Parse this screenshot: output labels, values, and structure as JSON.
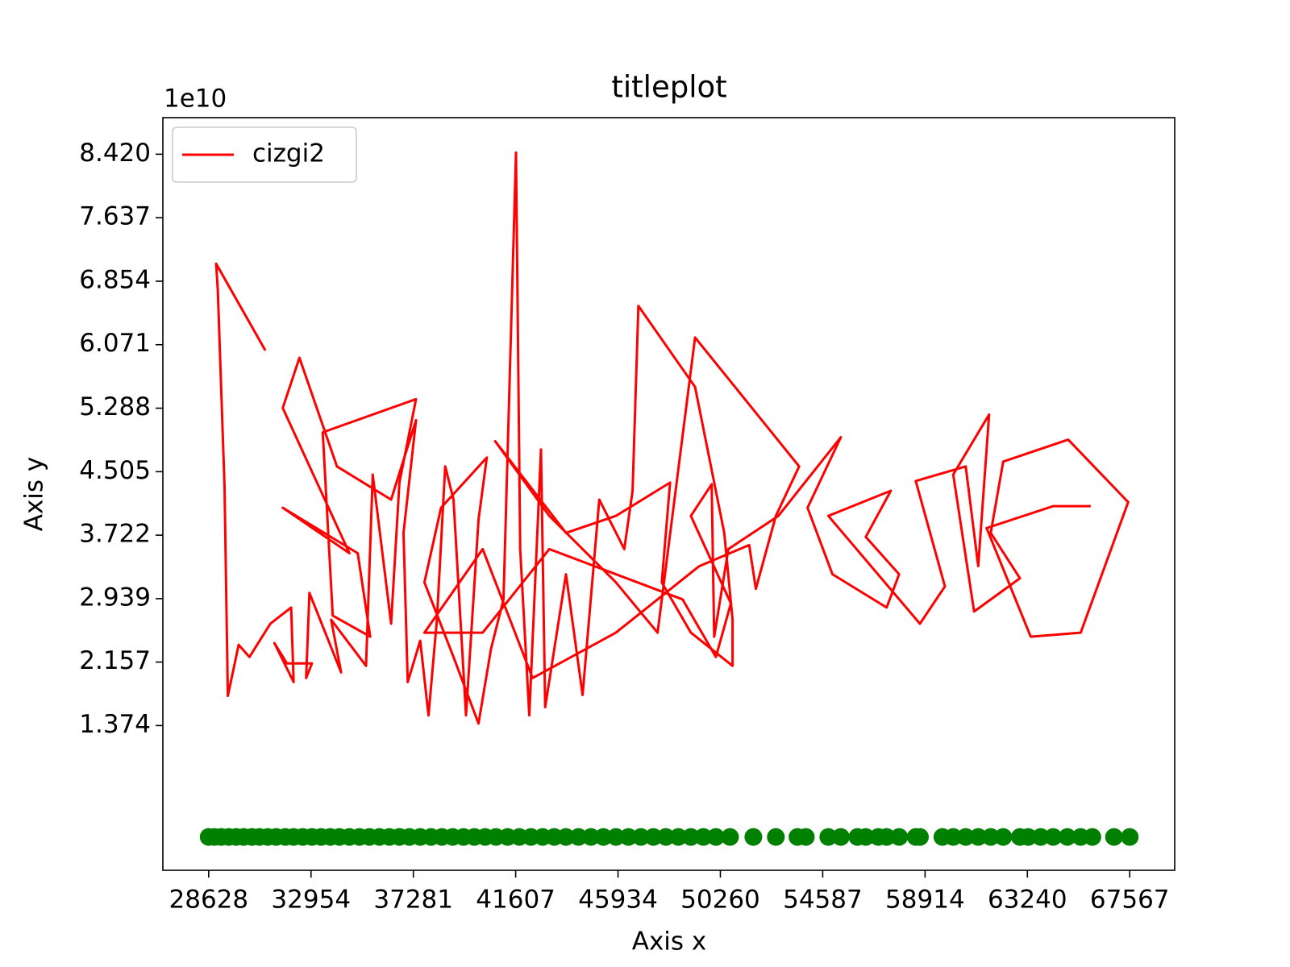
{
  "chart_data": {
    "type": "line",
    "title": "titleplot",
    "x_label": "Axis x",
    "y_label": "Axis y",
    "y_offset_label": "1e10",
    "xlim": [
      26691,
      69468
    ],
    "ylim": [
      -0.411,
      8.871
    ],
    "xticks": [
      28628,
      32954,
      37281,
      41607,
      45934,
      50260,
      54587,
      58914,
      63240,
      67567
    ],
    "yticks": [
      {
        "value": 1.374,
        "label": "1.374"
      },
      {
        "value": 2.157,
        "label": "2.157"
      },
      {
        "value": 2.939,
        "label": "2.939"
      },
      {
        "value": 3.722,
        "label": "3.722"
      },
      {
        "value": 4.505,
        "label": "4.505"
      },
      {
        "value": 5.288,
        "label": "5.288"
      },
      {
        "value": 6.071,
        "label": "6.071"
      },
      {
        "value": 6.854,
        "label": "6.854"
      },
      {
        "value": 7.637,
        "label": "7.637"
      },
      {
        "value": 8.42,
        "label": "8.420"
      }
    ],
    "grid": false,
    "legend_position": "upper left",
    "series": [
      {
        "name": "cizgi2",
        "type": "line",
        "color": "#ff0000",
        "x": [
          31022,
          28945,
          29015,
          29297,
          29438,
          29895,
          30353,
          31233,
          32114,
          32219,
          31409,
          31937,
          32994,
          32747,
          32888,
          34226,
          33804,
          35282,
          35564,
          36339,
          36691,
          37395,
          33451,
          33874,
          35458,
          34930,
          31761,
          34578,
          31761,
          32466,
          34050,
          36339,
          37395,
          36867,
          37043,
          37571,
          37923,
          38275,
          38627,
          38979,
          39508,
          40036,
          40388,
          38451,
          37747,
          38979,
          40036,
          40564,
          41092,
          41620,
          41796,
          42184,
          42677,
          42853,
          43733,
          44437,
          45141,
          46198,
          46550,
          46796,
          49190,
          50423,
          50775,
          50775,
          49014,
          47782,
          48134,
          45845,
          43733,
          40740,
          43029,
          45845,
          47606,
          49190,
          53591,
          52605,
          51760,
          51479,
          49366,
          45845,
          42324,
          40212,
          37747,
          40212,
          43029,
          48662,
          50071,
          50704,
          49014,
          49894,
          49999,
          50598,
          52711,
          55352,
          53944,
          54999,
          57289,
          57817,
          56408,
          57465,
          54824,
          58697,
          59753,
          58521,
          60634,
          61163,
          61620,
          60106,
          60986,
          62922,
          61690,
          62218,
          64964,
          67500,
          65493,
          63380,
          61515,
          64332,
          65916
        ],
        "values": [
          6.0,
          7.07,
          6.73,
          4.32,
          1.74,
          2.37,
          2.22,
          2.63,
          2.83,
          1.91,
          2.39,
          2.14,
          2.14,
          1.96,
          3.01,
          2.03,
          2.68,
          2.11,
          4.47,
          2.63,
          4.37,
          5.4,
          4.99,
          2.73,
          2.47,
          3.5,
          4.06,
          3.5,
          5.29,
          5.91,
          4.57,
          4.16,
          5.14,
          3.75,
          1.91,
          2.42,
          1.5,
          2.68,
          4.57,
          4.16,
          1.5,
          3.91,
          4.68,
          4.06,
          3.14,
          2.22,
          1.4,
          2.32,
          2.93,
          8.44,
          3.55,
          1.5,
          4.78,
          1.6,
          3.24,
          1.75,
          4.16,
          3.55,
          4.27,
          6.55,
          5.55,
          3.75,
          2.68,
          2.11,
          2.52,
          3.14,
          4.37,
          3.96,
          3.75,
          4.88,
          3.96,
          3.14,
          2.52,
          6.16,
          4.57,
          3.96,
          3.06,
          3.6,
          3.34,
          2.52,
          1.96,
          3.55,
          2.52,
          2.52,
          3.55,
          2.93,
          2.22,
          2.88,
          3.96,
          4.35,
          2.47,
          3.55,
          3.96,
          4.93,
          4.06,
          3.24,
          2.83,
          3.24,
          3.7,
          4.27,
          3.96,
          2.63,
          3.09,
          4.39,
          4.57,
          3.34,
          5.21,
          4.47,
          2.78,
          3.19,
          3.75,
          4.63,
          4.9,
          4.13,
          2.52,
          2.47,
          3.81,
          4.08,
          4.08
        ]
      },
      {
        "type": "scatter",
        "color": "#008000",
        "x": [
          28628,
          28874,
          29156,
          29473,
          29790,
          30107,
          30459,
          30776,
          31128,
          31480,
          31867,
          32219,
          32606,
          32994,
          33381,
          33768,
          34156,
          34578,
          35001,
          35423,
          35846,
          36268,
          36691,
          37113,
          37571,
          38029,
          38487,
          38944,
          39402,
          39860,
          40317,
          40775,
          41268,
          41761,
          42254,
          42747,
          43240,
          43733,
          44261,
          44789,
          45317,
          45845,
          46374,
          46902,
          47430,
          47958,
          48486,
          49014,
          49542,
          50071,
          50669,
          51655,
          52606,
          53521,
          53873,
          54824,
          55352,
          56056,
          56408,
          56937,
          57289,
          57817,
          58521,
          58697,
          59648,
          60106,
          60634,
          61163,
          61690,
          62218,
          62922,
          63274,
          63803,
          64332,
          64930,
          65493,
          65986,
          66902,
          67567
        ],
        "values": [
          0,
          0,
          0,
          0,
          0,
          0,
          0,
          0,
          0,
          0,
          0,
          0,
          0,
          0,
          0,
          0,
          0,
          0,
          0,
          0,
          0,
          0,
          0,
          0,
          0,
          0,
          0,
          0,
          0,
          0,
          0,
          0,
          0,
          0,
          0,
          0,
          0,
          0,
          0,
          0,
          0,
          0,
          0,
          0,
          0,
          0,
          0,
          0,
          0,
          0,
          0,
          0,
          0,
          0,
          0,
          0,
          0,
          0,
          0,
          0,
          0,
          0,
          0,
          0,
          0,
          0,
          0,
          0,
          0,
          0,
          0,
          0,
          0,
          0,
          0,
          0,
          0,
          0,
          0
        ]
      }
    ]
  }
}
